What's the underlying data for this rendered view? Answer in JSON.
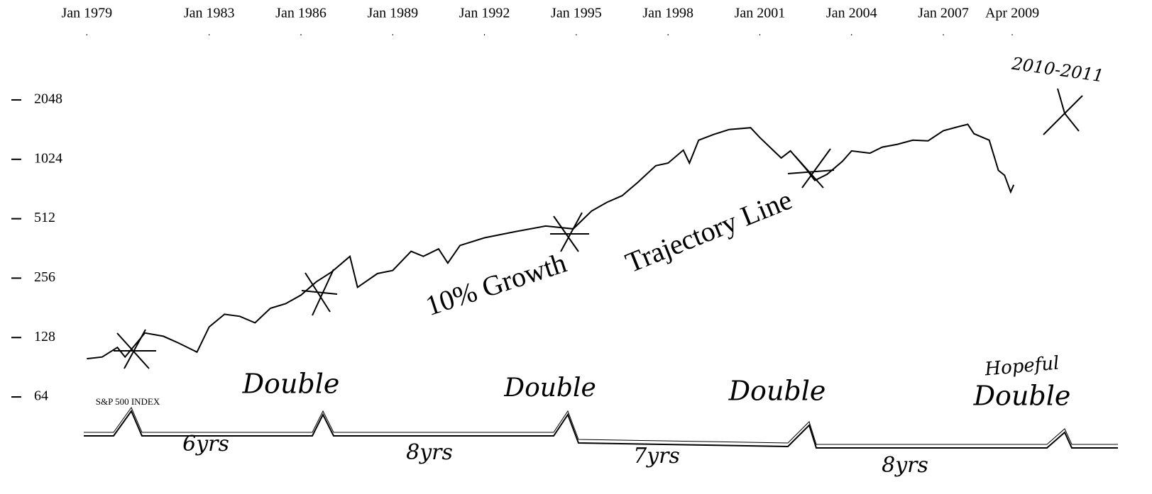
{
  "chart_data": {
    "type": "line",
    "y_scale": "log",
    "grid": false,
    "xlim": [
      1978.9,
      2011.5
    ],
    "xticks": [
      {
        "value": 1979,
        "label": "Jan 1979"
      },
      {
        "value": 1983,
        "label": "Jan 1983"
      },
      {
        "value": 1986,
        "label": "Jan 1986"
      },
      {
        "value": 1989,
        "label": "Jan 1989"
      },
      {
        "value": 1992,
        "label": "Jan 1992"
      },
      {
        "value": 1995,
        "label": "Jan 1995"
      },
      {
        "value": 1998,
        "label": "Jan 1998"
      },
      {
        "value": 2001,
        "label": "Jan 2001"
      },
      {
        "value": 2004,
        "label": "Jan 2004"
      },
      {
        "value": 2007,
        "label": "Jan 2007"
      },
      {
        "value": 2009.25,
        "label": "Apr 2009"
      }
    ],
    "ylim": [
      46,
      4000
    ],
    "yticks": [
      64,
      128,
      256,
      512,
      1024,
      2048
    ],
    "x": [
      1979.0,
      1979.5,
      1980.0,
      1980.25,
      1980.9,
      1981.5,
      1982.0,
      1982.6,
      1983.0,
      1983.5,
      1984.0,
      1984.5,
      1985.0,
      1985.5,
      1986.0,
      1986.5,
      1987.0,
      1987.6,
      1987.85,
      1988.5,
      1989.0,
      1989.6,
      1990.0,
      1990.5,
      1990.8,
      1991.2,
      1992.0,
      1993.0,
      1994.0,
      1994.9,
      1995.5,
      1996.0,
      1996.5,
      1997.0,
      1997.6,
      1998.0,
      1998.5,
      1998.7,
      1999.0,
      1999.5,
      2000.0,
      2000.7,
      2001.0,
      2001.7,
      2002.0,
      2002.5,
      2002.8,
      2003.2,
      2003.7,
      2004.0,
      2004.6,
      2005.0,
      2005.5,
      2006.0,
      2006.5,
      2007.0,
      2007.5,
      2007.8,
      2008.0,
      2008.5,
      2008.8,
      2009.0,
      2009.2,
      2009.3
    ],
    "series": [
      {
        "color": "#000000",
        "values": [
          100,
          102,
          114,
          102,
          135,
          130,
          120,
          108,
          145,
          168,
          164,
          152,
          180,
          190,
          210,
          245,
          275,
          330,
          230,
          270,
          280,
          350,
          330,
          360,
          305,
          375,
          410,
          440,
          470,
          455,
          560,
          620,
          670,
          780,
          950,
          980,
          1140,
          980,
          1280,
          1370,
          1450,
          1480,
          1320,
          1040,
          1130,
          920,
          800,
          860,
          1000,
          1130,
          1100,
          1180,
          1220,
          1280,
          1270,
          1430,
          1500,
          1540,
          1380,
          1280,
          900,
          850,
          700,
          760
        ]
      }
    ],
    "annotations": [
      "10% Growth",
      "Trajectory Line",
      "Double",
      "Double",
      "Double",
      "Hopeful",
      "Double",
      "6yrs",
      "8yrs",
      "7yrs",
      "8yrs",
      "2010-2011",
      "S&P 500 INDEX"
    ]
  }
}
